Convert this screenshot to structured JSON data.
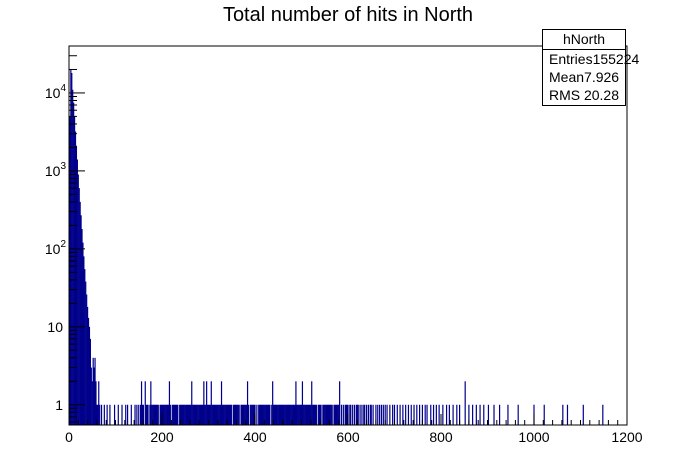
{
  "chart_data": {
    "type": "bar",
    "title": "Total number of hits in North",
    "xlabel": "",
    "ylabel": "",
    "xlim": [
      0,
      1200
    ],
    "ylim_log": [
      0.55,
      40000
    ],
    "y_scale": "log",
    "grid": false,
    "x_ticks": [
      "0",
      "200",
      "400",
      "600",
      "800",
      "1000",
      "1200"
    ],
    "y_ticks": [
      {
        "base": "1",
        "exp": ""
      },
      {
        "base": "10",
        "exp": ""
      },
      {
        "base": "10",
        "exp": "2"
      },
      {
        "base": "10",
        "exp": "3"
      },
      {
        "base": "10",
        "exp": "4"
      }
    ],
    "bar_color": "#00008b",
    "series": [
      {
        "x": [
          2,
          4,
          6,
          8,
          10,
          12,
          14,
          16,
          18,
          20,
          22,
          24,
          26,
          28,
          30,
          32,
          34,
          36,
          38,
          40,
          42,
          44,
          46,
          48,
          50,
          52,
          54,
          56,
          58,
          60,
          62,
          64,
          66,
          70,
          76,
          82,
          88,
          98,
          106,
          114,
          122,
          126,
          134,
          142,
          146,
          150,
          154,
          156,
          158,
          160,
          164,
          166,
          168,
          170,
          174,
          176,
          178,
          180,
          182,
          184,
          186,
          188,
          190,
          192,
          196,
          198,
          200,
          202,
          204,
          206,
          208,
          210,
          212,
          214,
          216,
          218,
          222,
          224,
          226,
          228,
          230,
          232,
          234,
          238,
          240,
          242,
          244,
          246,
          248,
          250,
          252,
          254,
          256,
          258,
          260,
          262,
          264,
          266,
          268,
          270,
          272,
          274,
          276,
          278,
          280,
          282,
          284,
          286,
          288,
          290,
          292,
          294,
          296,
          298,
          300,
          302,
          304,
          306,
          308,
          310,
          312,
          314,
          316,
          318,
          320,
          322,
          324,
          326,
          328,
          330,
          332,
          334,
          336,
          338,
          340,
          342,
          344,
          346,
          348,
          350,
          354,
          356,
          358,
          360,
          362,
          364,
          366,
          370,
          372,
          374,
          376,
          378,
          380,
          382,
          384,
          386,
          390,
          392,
          394,
          396,
          398,
          400,
          404,
          408,
          410,
          412,
          414,
          416,
          418,
          420,
          422,
          424,
          426,
          428,
          430,
          432,
          436,
          438,
          440,
          442,
          444,
          446,
          448,
          450,
          452,
          454,
          456,
          458,
          460,
          462,
          464,
          466,
          468,
          470,
          472,
          474,
          476,
          478,
          480,
          482,
          484,
          486,
          488,
          490,
          492,
          494,
          496,
          498,
          500,
          502,
          504,
          506,
          508,
          510,
          512,
          514,
          516,
          518,
          520,
          522,
          524,
          526,
          528,
          530,
          532,
          536,
          538,
          540,
          542,
          546,
          548,
          550,
          552,
          554,
          556,
          558,
          560,
          562,
          564,
          566,
          570,
          572,
          574,
          576,
          578,
          580,
          582,
          586,
          590,
          594,
          596,
          598,
          600,
          604,
          606,
          610,
          614,
          618,
          620,
          622,
          626,
          630,
          634,
          636,
          640,
          644,
          648,
          650,
          654,
          660,
          664,
          668,
          672,
          676,
          680,
          684,
          690,
          696,
          700,
          706,
          712,
          718,
          724,
          730,
          736,
          742,
          748,
          754,
          760,
          766,
          770,
          778,
          784,
          790,
          796,
          804,
          812,
          818,
          826,
          834,
          840,
          852,
          860,
          868,
          876,
          884,
          892,
          902,
          914,
          926,
          944,
          966,
          1000,
          1022,
          1062,
          1072,
          1106,
          1148
        ],
        "y": [
          5000,
          20000,
          18000,
          11000,
          7500,
          5000,
          3200,
          2100,
          1400,
          900,
          600,
          400,
          270,
          180,
          120,
          80,
          55,
          38,
          26,
          18,
          13,
          10,
          7,
          3,
          2,
          4,
          3,
          4,
          2,
          1,
          1,
          2,
          1,
          1,
          1,
          1,
          1,
          1,
          1,
          1,
          1,
          1,
          1,
          1,
          1,
          1,
          1,
          2,
          1,
          1,
          2,
          1,
          1,
          1,
          1,
          2,
          1,
          1,
          1,
          1,
          1,
          1,
          1,
          1,
          1,
          1,
          1,
          1,
          1,
          1,
          1,
          1,
          1,
          1,
          2,
          1,
          1,
          1,
          1,
          1,
          1,
          1,
          1,
          1,
          1,
          1,
          1,
          1,
          1,
          1,
          1,
          1,
          1,
          1,
          1,
          1,
          2,
          1,
          1,
          1,
          1,
          1,
          1,
          1,
          1,
          1,
          1,
          1,
          1,
          2,
          1,
          1,
          2,
          1,
          1,
          1,
          1,
          2,
          1,
          1,
          1,
          1,
          1,
          1,
          1,
          1,
          1,
          1,
          2,
          1,
          1,
          1,
          1,
          1,
          1,
          1,
          1,
          1,
          1,
          1,
          1,
          1,
          1,
          1,
          1,
          1,
          1,
          1,
          1,
          1,
          1,
          1,
          1,
          1,
          2,
          1,
          1,
          1,
          1,
          1,
          1,
          1,
          1,
          1,
          1,
          1,
          1,
          1,
          1,
          1,
          1,
          1,
          1,
          1,
          1,
          1,
          1,
          2,
          1,
          1,
          1,
          1,
          1,
          1,
          1,
          1,
          1,
          1,
          1,
          1,
          1,
          1,
          1,
          1,
          1,
          1,
          1,
          1,
          1,
          1,
          1,
          1,
          2,
          1,
          1,
          1,
          1,
          1,
          1,
          2,
          1,
          1,
          1,
          1,
          1,
          1,
          1,
          1,
          1,
          2,
          1,
          1,
          1,
          1,
          1,
          1,
          1,
          1,
          1,
          1,
          1,
          1,
          1,
          1,
          1,
          1,
          1,
          1,
          1,
          1,
          1,
          1,
          1,
          1,
          1,
          1,
          2,
          1,
          1,
          1,
          1,
          1,
          1,
          1,
          1,
          1,
          1,
          1,
          1,
          1,
          1,
          1,
          1,
          1,
          1,
          1,
          1,
          1,
          1,
          1,
          1,
          1,
          1,
          1,
          1,
          1,
          1,
          1,
          1,
          1,
          1,
          1,
          1,
          1,
          1,
          1,
          1,
          1,
          1,
          1,
          1,
          1,
          1,
          1,
          1,
          1,
          1,
          1,
          1,
          1,
          1,
          2,
          1,
          1,
          1,
          1,
          1,
          1,
          1,
          1,
          1,
          1,
          1,
          1,
          1,
          1,
          1,
          1
        ]
      }
    ]
  },
  "stats": {
    "name": "hNorth",
    "entries_label": "Entries",
    "entries_value": "155224",
    "mean_label": "Mean",
    "mean_value": "7.926",
    "rms_label": "RMS",
    "rms_value": "20.28"
  }
}
